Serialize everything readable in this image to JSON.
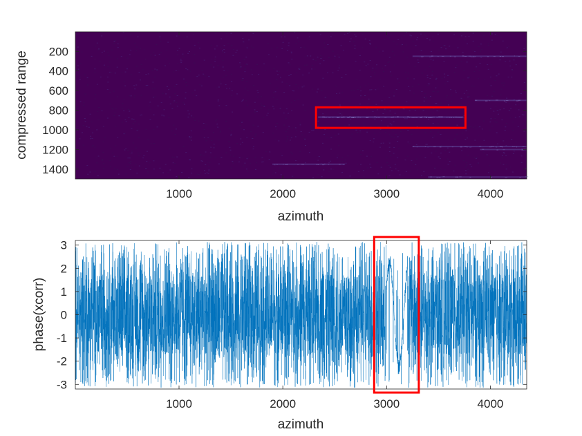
{
  "chart_data": [
    {
      "type": "heatmap",
      "title": "",
      "xlabel": "azimuth",
      "ylabel": "compressed range",
      "xlim": [
        1,
        4350
      ],
      "ylim": [
        1,
        1500
      ],
      "y_reversed": true,
      "xticks": [
        1000,
        2000,
        3000,
        4000
      ],
      "yticks": [
        200,
        400,
        600,
        800,
        1000,
        1200,
        1400
      ],
      "colormap": {
        "background": "#440154",
        "bright": "#8b7fc8"
      },
      "bright_streaks": [
        {
          "x0": 2340,
          "x1": 3740,
          "y": 870,
          "intensity": 0.9
        },
        {
          "x0": 3250,
          "x1": 4350,
          "y": 250,
          "intensity": 0.45
        },
        {
          "x0": 3850,
          "x1": 4350,
          "y": 700,
          "intensity": 0.5
        },
        {
          "x0": 3250,
          "x1": 4350,
          "y": 1170,
          "intensity": 0.45
        },
        {
          "x0": 3900,
          "x1": 4350,
          "y": 1200,
          "intensity": 0.4
        },
        {
          "x0": 1900,
          "x1": 2600,
          "y": 1350,
          "intensity": 0.35
        },
        {
          "x0": 3400,
          "x1": 4350,
          "y": 1480,
          "intensity": 0.3
        }
      ],
      "annotations": [
        {
          "shape": "rectangle",
          "color": "#ff0000",
          "x0": 2320,
          "x1": 3760,
          "y0": 770,
          "y1": 980
        }
      ]
    },
    {
      "type": "line",
      "title": "",
      "xlabel": "azimuth",
      "ylabel": "phase(xcorr)",
      "xlim": [
        1,
        4350
      ],
      "ylim": [
        -3.2,
        3.2
      ],
      "xticks": [
        1000,
        2000,
        3000,
        4000
      ],
      "yticks": [
        3,
        2,
        1,
        0,
        -1,
        -2,
        -3
      ],
      "series_color": "#0072bd",
      "signal": "wrapped random phase in [-3.14, 3.14] over every azimuth sample, with a coherent slowly-varying segment between about 3000 and 3200",
      "coherent_segment": {
        "x0": 3000,
        "x1": 3200
      },
      "annotations": [
        {
          "shape": "rectangle",
          "color": "#ff0000",
          "x0": 2880,
          "x1": 3310,
          "y0": -3.35,
          "y1": 3.35
        }
      ]
    }
  ]
}
